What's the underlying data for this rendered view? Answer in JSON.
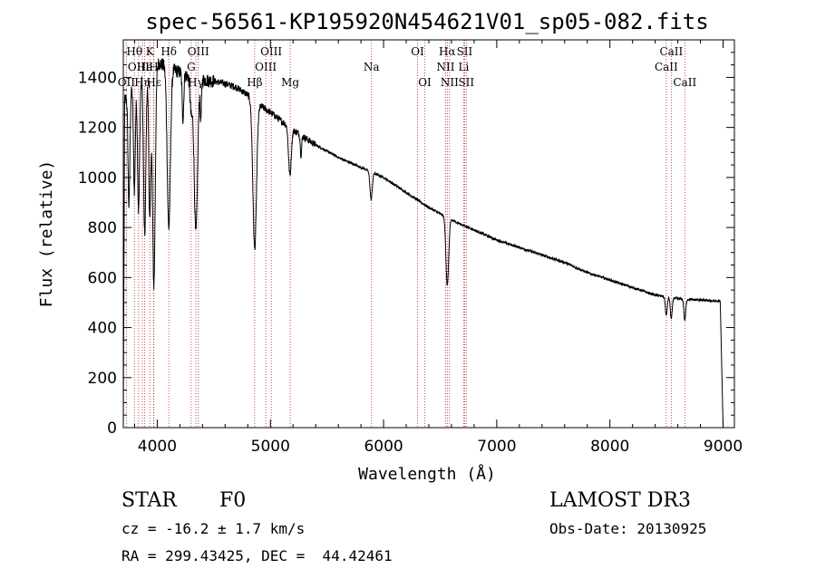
{
  "chart_data": {
    "type": "line",
    "title": "spec-56561-KP195920N454621V01_sp05-082.fits",
    "xlabel": "Wavelength (Å)",
    "ylabel": "Flux (relative)",
    "xlim": [
      3700,
      9100
    ],
    "ylim": [
      0,
      1550
    ],
    "xticks": [
      4000,
      5000,
      6000,
      7000,
      8000,
      9000
    ],
    "yticks": [
      0,
      200,
      400,
      600,
      800,
      1000,
      1200,
      1400
    ],
    "continuum": [
      [
        3700,
        1300
      ],
      [
        3800,
        1370
      ],
      [
        3900,
        1420
      ],
      [
        4000,
        1460
      ],
      [
        4100,
        1440
      ],
      [
        4200,
        1420
      ],
      [
        4300,
        1400
      ],
      [
        4400,
        1390
      ],
      [
        4500,
        1385
      ],
      [
        4600,
        1375
      ],
      [
        4700,
        1360
      ],
      [
        4800,
        1330
      ],
      [
        4900,
        1290
      ],
      [
        5000,
        1260
      ],
      [
        5200,
        1190
      ],
      [
        5400,
        1130
      ],
      [
        5600,
        1080
      ],
      [
        5800,
        1040
      ],
      [
        6000,
        1000
      ],
      [
        6200,
        940
      ],
      [
        6400,
        880
      ],
      [
        6600,
        830
      ],
      [
        6800,
        790
      ],
      [
        7000,
        750
      ],
      [
        7200,
        720
      ],
      [
        7400,
        690
      ],
      [
        7600,
        660
      ],
      [
        7800,
        620
      ],
      [
        8000,
        590
      ],
      [
        8200,
        560
      ],
      [
        8400,
        530
      ],
      [
        8600,
        515
      ],
      [
        8800,
        510
      ],
      [
        8950,
        505
      ]
    ],
    "absorption_lines": [
      {
        "center": 3750,
        "depth": 450,
        "width": 8
      },
      {
        "center": 3798,
        "depth": 420,
        "width": 8
      },
      {
        "center": 3835,
        "depth": 520,
        "width": 9
      },
      {
        "center": 3889,
        "depth": 650,
        "width": 10
      },
      {
        "center": 3934,
        "depth": 600,
        "width": 9
      },
      {
        "center": 3970,
        "depth": 880,
        "width": 12
      },
      {
        "center": 4102,
        "depth": 640,
        "width": 14
      },
      {
        "center": 4227,
        "depth": 180,
        "width": 7
      },
      {
        "center": 4300,
        "depth": 140,
        "width": 10
      },
      {
        "center": 4341,
        "depth": 620,
        "width": 15
      },
      {
        "center": 4385,
        "depth": 150,
        "width": 6
      },
      {
        "center": 4861,
        "depth": 590,
        "width": 16
      },
      {
        "center": 5172,
        "depth": 190,
        "width": 12
      },
      {
        "center": 5270,
        "depth": 80,
        "width": 6
      },
      {
        "center": 5890,
        "depth": 110,
        "width": 10
      },
      {
        "center": 6563,
        "depth": 270,
        "width": 12
      },
      {
        "center": 8498,
        "depth": 75,
        "width": 8
      },
      {
        "center": 8542,
        "depth": 85,
        "width": 8
      },
      {
        "center": 8662,
        "depth": 85,
        "width": 8
      }
    ],
    "reference_lines": [
      {
        "wavelength": 3727,
        "label": "OII",
        "row": 2
      },
      {
        "wavelength": 3798,
        "label": "Hθ",
        "row": 0
      },
      {
        "wavelength": 3835,
        "label": "OIII",
        "row": 1
      },
      {
        "wavelength": 3869,
        "label": "Hη",
        "row": 2
      },
      {
        "wavelength": 3889,
        "label": "He",
        "row": 1
      },
      {
        "wavelength": 3934,
        "label": "K",
        "row": 0
      },
      {
        "wavelength": 3968,
        "label": "H",
        "row": 1
      },
      {
        "wavelength": 3970,
        "label": "Hε",
        "row": 2
      },
      {
        "wavelength": 4102,
        "label": "Hδ",
        "row": 0
      },
      {
        "wavelength": 4300,
        "label": "G",
        "row": 1
      },
      {
        "wavelength": 4341,
        "label": "Hγ",
        "row": 2
      },
      {
        "wavelength": 4363,
        "label": "OIII",
        "row": 0
      },
      {
        "wavelength": 4861,
        "label": "Hβ",
        "row": 2
      },
      {
        "wavelength": 4959,
        "label": "OIII",
        "row": 1
      },
      {
        "wavelength": 5007,
        "label": "OIII",
        "row": 0
      },
      {
        "wavelength": 5175,
        "label": "Mg",
        "row": 2
      },
      {
        "wavelength": 5893,
        "label": "Na",
        "row": 1
      },
      {
        "wavelength": 6300,
        "label": "OI",
        "row": 0
      },
      {
        "wavelength": 6364,
        "label": "OI",
        "row": 2
      },
      {
        "wavelength": 6548,
        "label": "NII",
        "row": 1
      },
      {
        "wavelength": 6563,
        "label": "Hα",
        "row": 0
      },
      {
        "wavelength": 6583,
        "label": "NII",
        "row": 2
      },
      {
        "wavelength": 6708,
        "label": "Li",
        "row": 1
      },
      {
        "wavelength": 6716,
        "label": "SII",
        "row": 0
      },
      {
        "wavelength": 6731,
        "label": "SII",
        "row": 2
      },
      {
        "wavelength": 8498,
        "label": "CaII",
        "row": 1
      },
      {
        "wavelength": 8542,
        "label": "CaII",
        "row": 0
      },
      {
        "wavelength": 8662,
        "label": "CaII",
        "row": 2
      }
    ]
  },
  "info": {
    "object_class": "STAR",
    "subclass": "F0",
    "redshift_text": "cz = -16.2 ± 1.7 km/s",
    "coords_text": "RA = 299.43425, DEC =  44.42461",
    "survey": "LAMOST DR3",
    "obs_date_text": "Obs-Date: 20130925"
  }
}
